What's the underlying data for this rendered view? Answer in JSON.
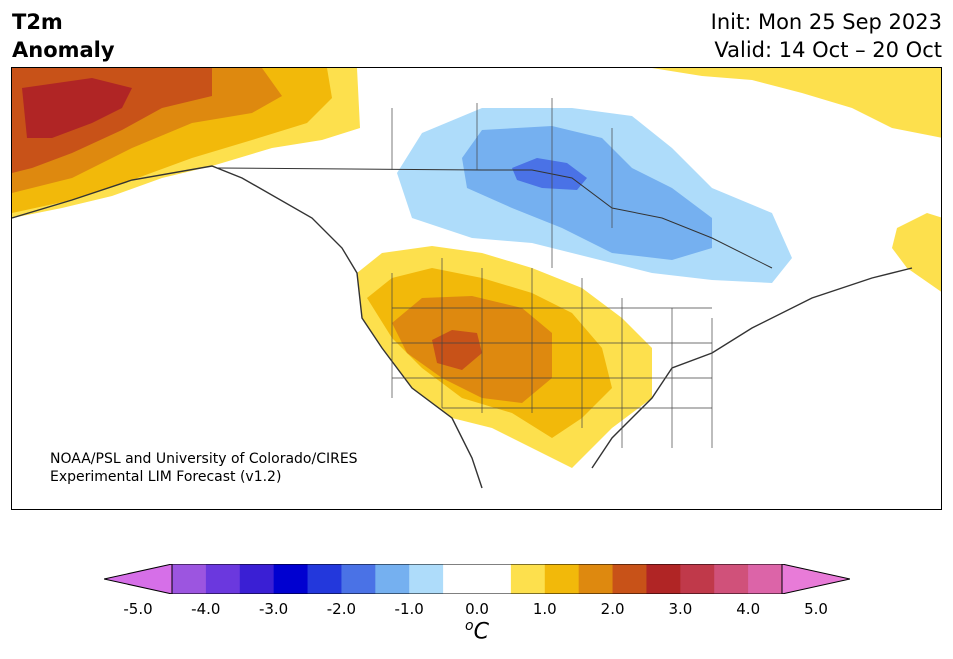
{
  "header": {
    "left_line1": "T2m",
    "left_line2": "Anomaly",
    "init": "Init: Mon 25 Sep 2023",
    "valid": "Valid: 14 Oct – 20 Oct"
  },
  "credit": {
    "line1": "NOAA/PSL and University of Colorado/CIRES",
    "line2": "Experimental LIM Forecast (v1.2)"
  },
  "colorbar": {
    "ticks": [
      "-5.0",
      "-4.0",
      "-3.0",
      "-2.0",
      "-1.0",
      "0.0",
      "1.0",
      "2.0",
      "3.0",
      "4.0",
      "5.0"
    ],
    "units_base": "C",
    "units_sup": "o",
    "levels": [
      {
        "color": "#d66fe8"
      },
      {
        "color": "#9c55e0"
      },
      {
        "color": "#6b38de"
      },
      {
        "color": "#3a1fd4"
      },
      {
        "color": "#0000d0"
      },
      {
        "color": "#2338dc"
      },
      {
        "color": "#4a72e6"
      },
      {
        "color": "#75b0f0"
      },
      {
        "color": "#aedcfa"
      },
      {
        "color": "#ffffff"
      },
      {
        "color": "#ffffff"
      },
      {
        "color": "#fde04d"
      },
      {
        "color": "#f2b90a"
      },
      {
        "color": "#de890f"
      },
      {
        "color": "#c85218"
      },
      {
        "color": "#b02525"
      },
      {
        "color": "#c0394a"
      },
      {
        "color": "#d0517a"
      },
      {
        "color": "#dc64a8"
      },
      {
        "color": "#e87bd8"
      }
    ]
  },
  "map_legend_colors": {
    "light_yellow": "#fde04d",
    "yellow": "#f2b90a",
    "orange": "#de890f",
    "dark_orange": "#c85218",
    "red": "#b02525",
    "light_blue": "#aedcfa",
    "blue": "#75b0f0",
    "mid_blue": "#4a72e6"
  }
}
